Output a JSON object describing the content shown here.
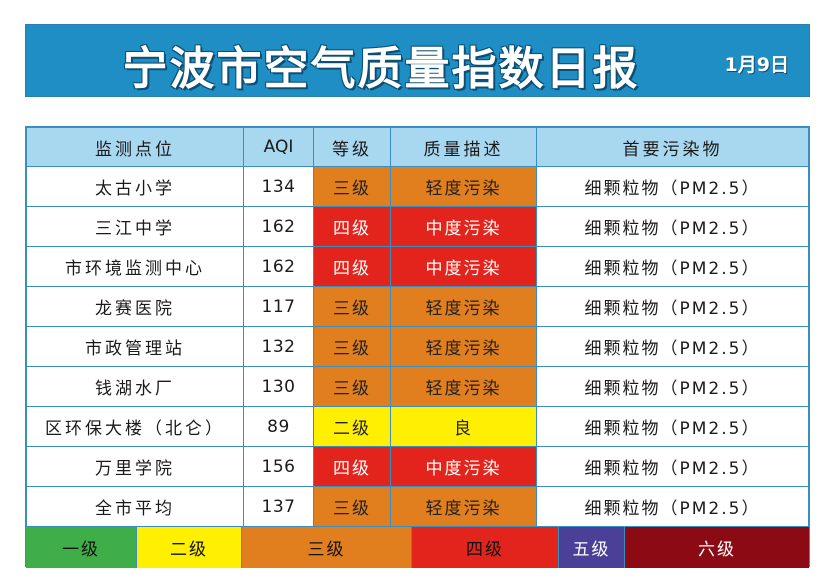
{
  "header": {
    "title": "宁波市空气质量指数日报",
    "date": "1月9日"
  },
  "table": {
    "columns": [
      "监测点位",
      "AQI",
      "等级",
      "质量描述",
      "首要污染物"
    ],
    "rows": [
      {
        "site": "太古小学",
        "aqi": "134",
        "grade": "三级",
        "desc": "轻度污染",
        "pollutant": "细颗粒物（PM2.5）",
        "level": "orange"
      },
      {
        "site": "三江中学",
        "aqi": "162",
        "grade": "四级",
        "desc": "中度污染",
        "pollutant": "细颗粒物（PM2.5）",
        "level": "red"
      },
      {
        "site": "市环境监测中心",
        "aqi": "162",
        "grade": "四级",
        "desc": "中度污染",
        "pollutant": "细颗粒物（PM2.5）",
        "level": "red"
      },
      {
        "site": "龙赛医院",
        "aqi": "117",
        "grade": "三级",
        "desc": "轻度污染",
        "pollutant": "细颗粒物（PM2.5）",
        "level": "orange"
      },
      {
        "site": "市政管理站",
        "aqi": "132",
        "grade": "三级",
        "desc": "轻度污染",
        "pollutant": "细颗粒物（PM2.5）",
        "level": "orange"
      },
      {
        "site": "钱湖水厂",
        "aqi": "130",
        "grade": "三级",
        "desc": "轻度污染",
        "pollutant": "细颗粒物（PM2.5）",
        "level": "orange"
      },
      {
        "site": "区环保大楼（北仑）",
        "aqi": "89",
        "grade": "二级",
        "desc": "良",
        "pollutant": "细颗粒物（PM2.5）",
        "level": "yellow"
      },
      {
        "site": "万里学院",
        "aqi": "156",
        "grade": "四级",
        "desc": "中度污染",
        "pollutant": "细颗粒物（PM2.5）",
        "level": "red"
      },
      {
        "site": "全市平均",
        "aqi": "137",
        "grade": "三级",
        "desc": "轻度污染",
        "pollutant": "细颗粒物（PM2.5）",
        "level": "orange"
      }
    ]
  },
  "legend": [
    {
      "label": "一级",
      "color": "#3fae49"
    },
    {
      "label": "二级",
      "color": "#ffef00"
    },
    {
      "label": "三级",
      "color": "#e17e1e"
    },
    {
      "label": "四级",
      "color": "#e2241c"
    },
    {
      "label": "五级",
      "color": "#4a4098"
    },
    {
      "label": "六级",
      "color": "#8b0a14"
    }
  ]
}
